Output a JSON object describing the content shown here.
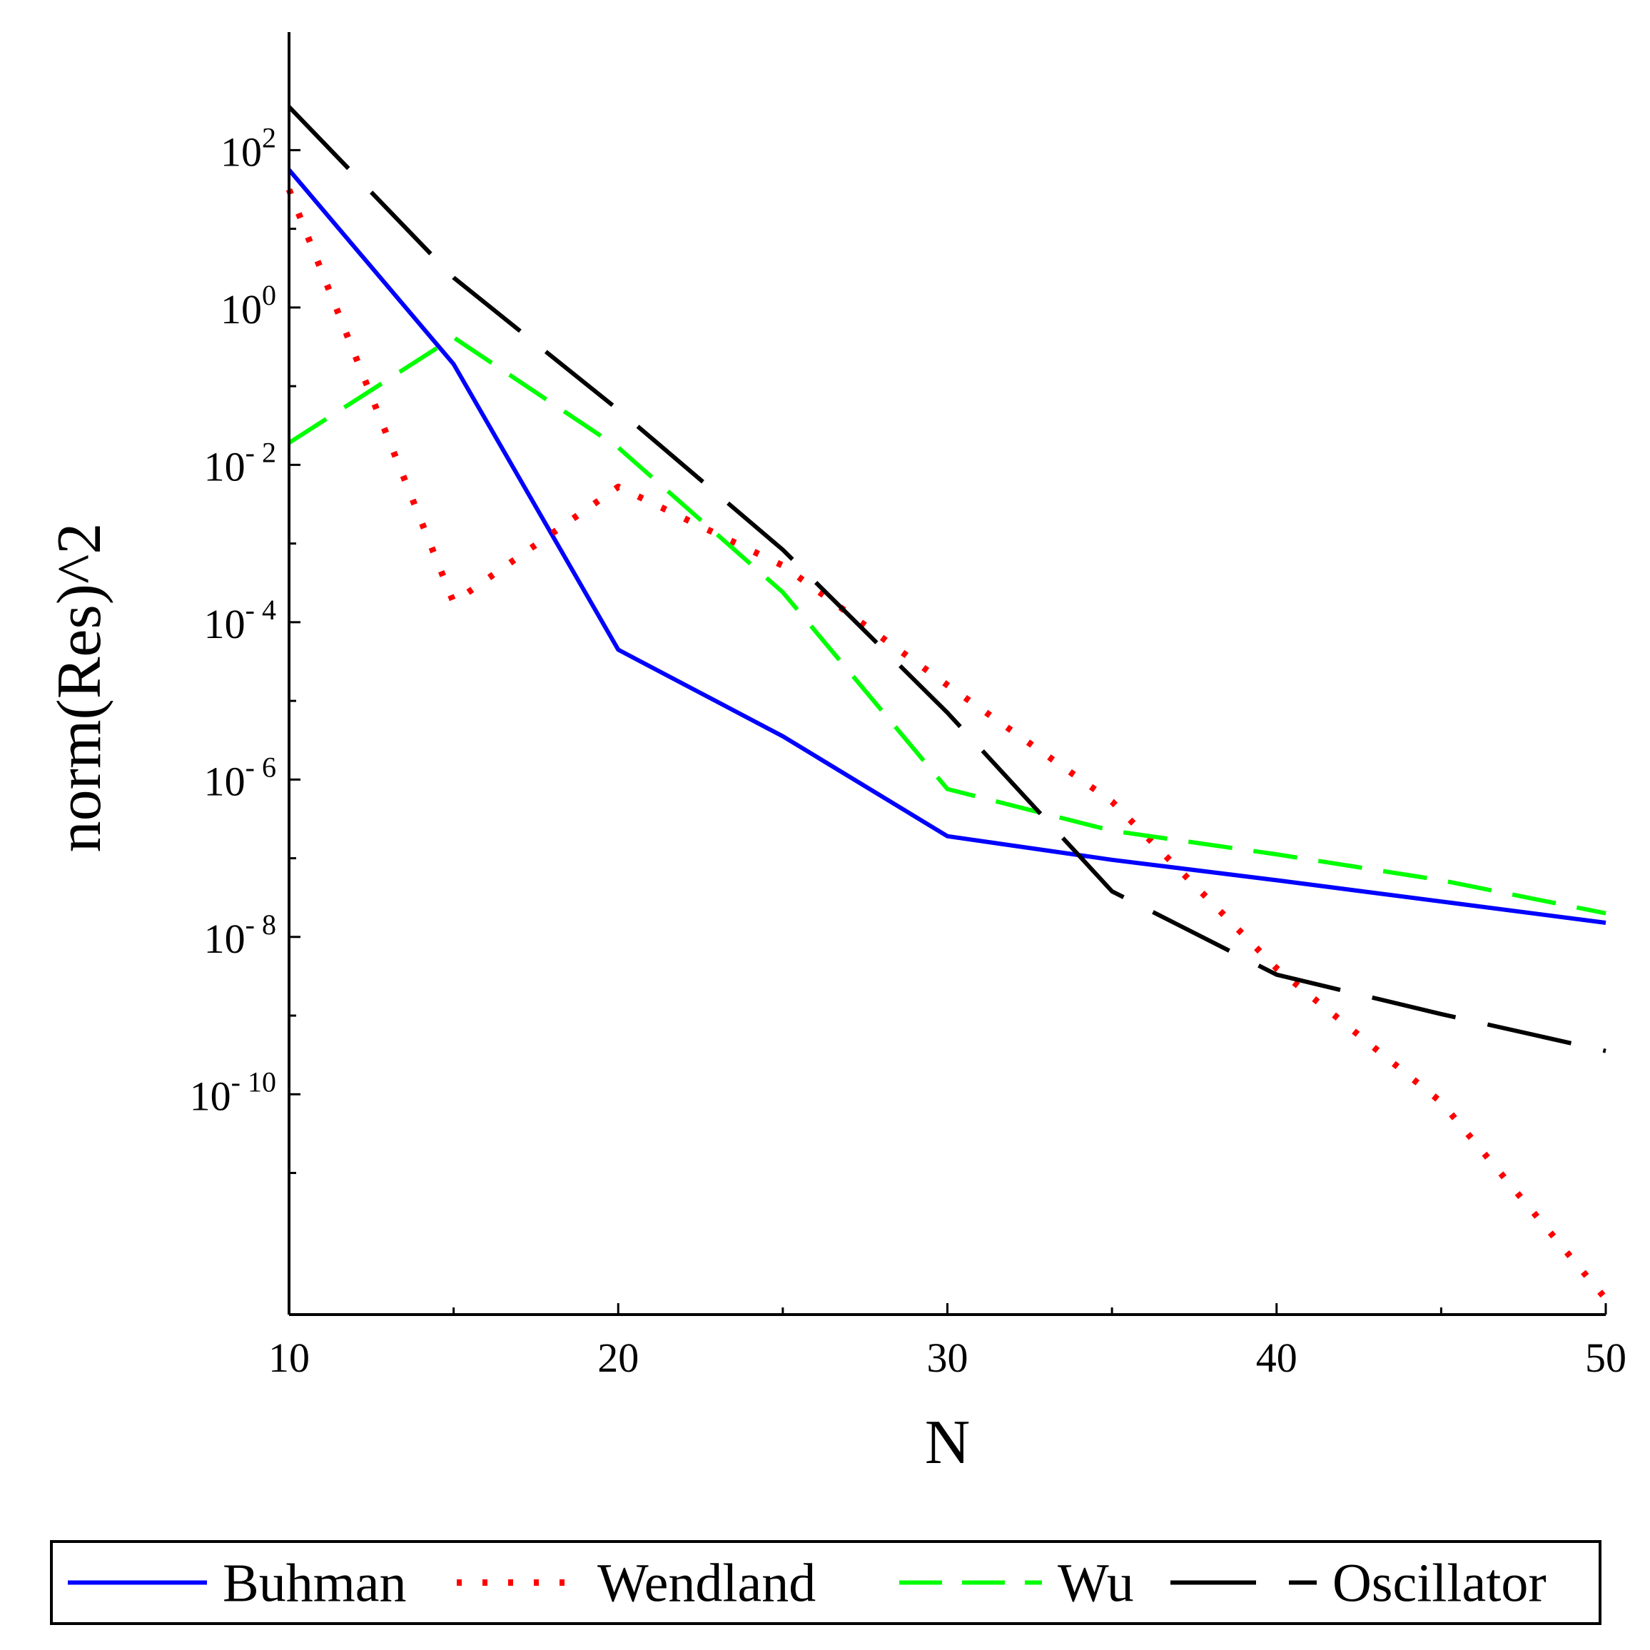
{
  "chart_data": {
    "type": "line",
    "title": "",
    "xlabel": "N",
    "ylabel": "norm(Res)^2",
    "y_scale": "log10",
    "xlim": [
      10,
      50
    ],
    "ylim_log10": [
      -12.8,
      3.5
    ],
    "x_ticks": [
      10,
      20,
      30,
      40,
      50
    ],
    "x_tick_labels": [
      "10",
      "20",
      "30",
      "40",
      "50"
    ],
    "y_ticks_log10": [
      2,
      0,
      -2,
      -4,
      -6,
      -8,
      -10
    ],
    "y_tick_mantissa": "10",
    "y_tick_exponents": [
      "2",
      "0",
      "- 2",
      "- 4",
      "- 6",
      "- 8",
      "- 10"
    ],
    "x": [
      10,
      15,
      20,
      25,
      30,
      35,
      40,
      45,
      50
    ],
    "series": [
      {
        "name": "Buhman",
        "color": "#0000ff",
        "style": "solid",
        "log10_values": [
          1.75,
          -0.72,
          -4.35,
          -5.45,
          -6.72,
          -7.02,
          -7.28,
          -7.55,
          -7.82
        ]
      },
      {
        "name": "Wendland",
        "color": "#ff0000",
        "style": "dotted",
        "log10_values": [
          1.5,
          -3.75,
          -2.28,
          -3.28,
          -4.8,
          -6.28,
          -8.4,
          -10.1,
          -12.6
        ]
      },
      {
        "name": "Wu",
        "color": "#00ff00",
        "style": "dashed",
        "log10_values": [
          -1.72,
          -0.38,
          -1.78,
          -3.62,
          -6.12,
          -6.65,
          -6.95,
          -7.28,
          -7.7
        ]
      },
      {
        "name": "Oscillator",
        "color": "#000000",
        "style": "long-dash",
        "log10_values": [
          2.55,
          0.38,
          -1.3,
          -3.08,
          -5.15,
          -7.42,
          -8.48,
          -8.98,
          -9.45
        ]
      }
    ],
    "legend_position": "bottom"
  }
}
